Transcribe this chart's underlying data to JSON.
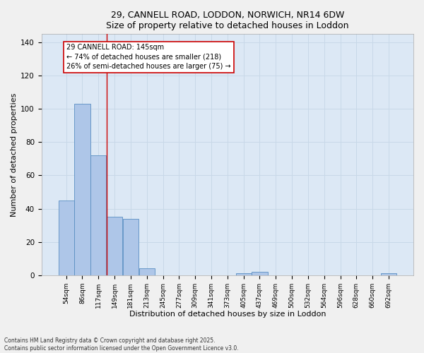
{
  "title1": "29, CANNELL ROAD, LODDON, NORWICH, NR14 6DW",
  "title2": "Size of property relative to detached houses in Loddon",
  "xlabel": "Distribution of detached houses by size in Loddon",
  "ylabel": "Number of detached properties",
  "categories": [
    "54sqm",
    "86sqm",
    "117sqm",
    "149sqm",
    "181sqm",
    "213sqm",
    "245sqm",
    "277sqm",
    "309sqm",
    "341sqm",
    "373sqm",
    "405sqm",
    "437sqm",
    "469sqm",
    "500sqm",
    "532sqm",
    "564sqm",
    "596sqm",
    "628sqm",
    "660sqm",
    "692sqm"
  ],
  "values": [
    45,
    103,
    72,
    35,
    34,
    4,
    0,
    0,
    0,
    0,
    0,
    1,
    2,
    0,
    0,
    0,
    0,
    0,
    0,
    0,
    1
  ],
  "bar_color": "#aec6e8",
  "bar_edge_color": "#5a8fc2",
  "vline_x": 2.5,
  "vline_color": "#cc0000",
  "annotation_text": "29 CANNELL ROAD: 145sqm\n← 74% of detached houses are smaller (218)\n26% of semi-detached houses are larger (75) →",
  "ylim": [
    0,
    145
  ],
  "yticks": [
    0,
    20,
    40,
    60,
    80,
    100,
    120,
    140
  ],
  "grid_color": "#c8d8e8",
  "bg_color": "#dce8f5",
  "fig_bg_color": "#f0f0f0",
  "footer1": "Contains HM Land Registry data © Crown copyright and database right 2025.",
  "footer2": "Contains public sector information licensed under the Open Government Licence v3.0."
}
